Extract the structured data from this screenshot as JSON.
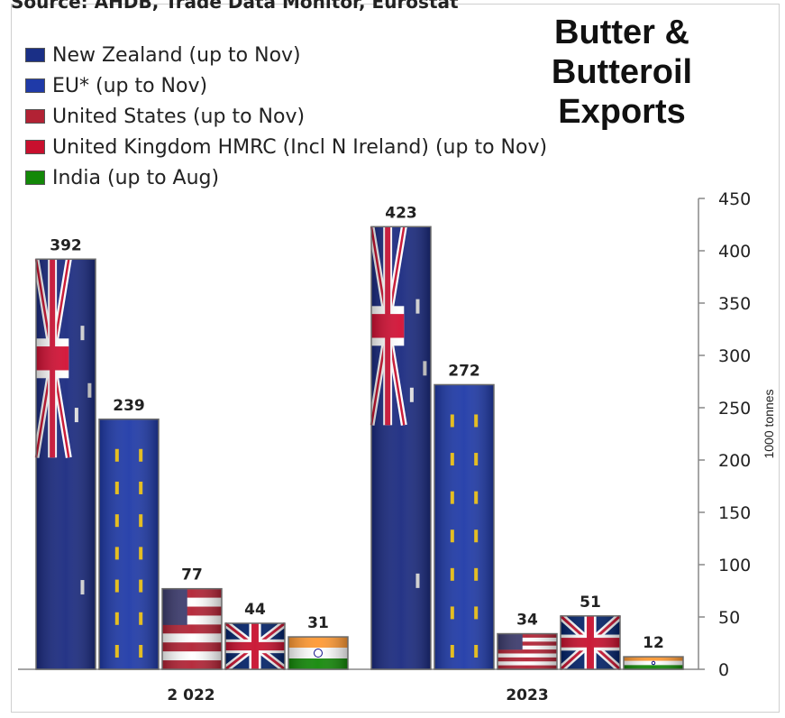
{
  "source_text": "Source: AHDB, Trade Data Monitor, Eurostat",
  "title_lines": [
    "Butter &",
    "Butteroil",
    "Exports"
  ],
  "legend": [
    {
      "label": "New Zealand (up to Nov)",
      "color": "#1a2f86"
    },
    {
      "label": "EU* (up to Nov)",
      "color": "#1f3aa8"
    },
    {
      "label": "United States (up to Nov)",
      "color": "#b22234"
    },
    {
      "label": "United Kingdom HMRC (Incl N Ireland) (up to Nov)",
      "color": "#c8102e"
    },
    {
      "label": "India (up to Aug)",
      "color": "#138808"
    }
  ],
  "chart_data": {
    "type": "bar",
    "title": "Butter & Butteroil Exports",
    "categories": [
      "2 022",
      "2023"
    ],
    "series": [
      {
        "name": "New Zealand (up to Nov)",
        "values": [
          392,
          423
        ]
      },
      {
        "name": "EU* (up to Nov)",
        "values": [
          239,
          272
        ]
      },
      {
        "name": "United States (up to Nov)",
        "values": [
          77,
          34
        ]
      },
      {
        "name": "United Kingdom HMRC (Incl N Ireland) (up to Nov)",
        "values": [
          44,
          51
        ]
      },
      {
        "name": "India (up to Aug)",
        "values": [
          31,
          12
        ]
      }
    ],
    "ylabel": "1000 tonnes",
    "ylim": [
      0,
      450
    ],
    "yticks": [
      0,
      50,
      100,
      150,
      200,
      250,
      300,
      350,
      400,
      450
    ],
    "grid": false,
    "legend_position": "top-left",
    "axis_position": "right"
  }
}
